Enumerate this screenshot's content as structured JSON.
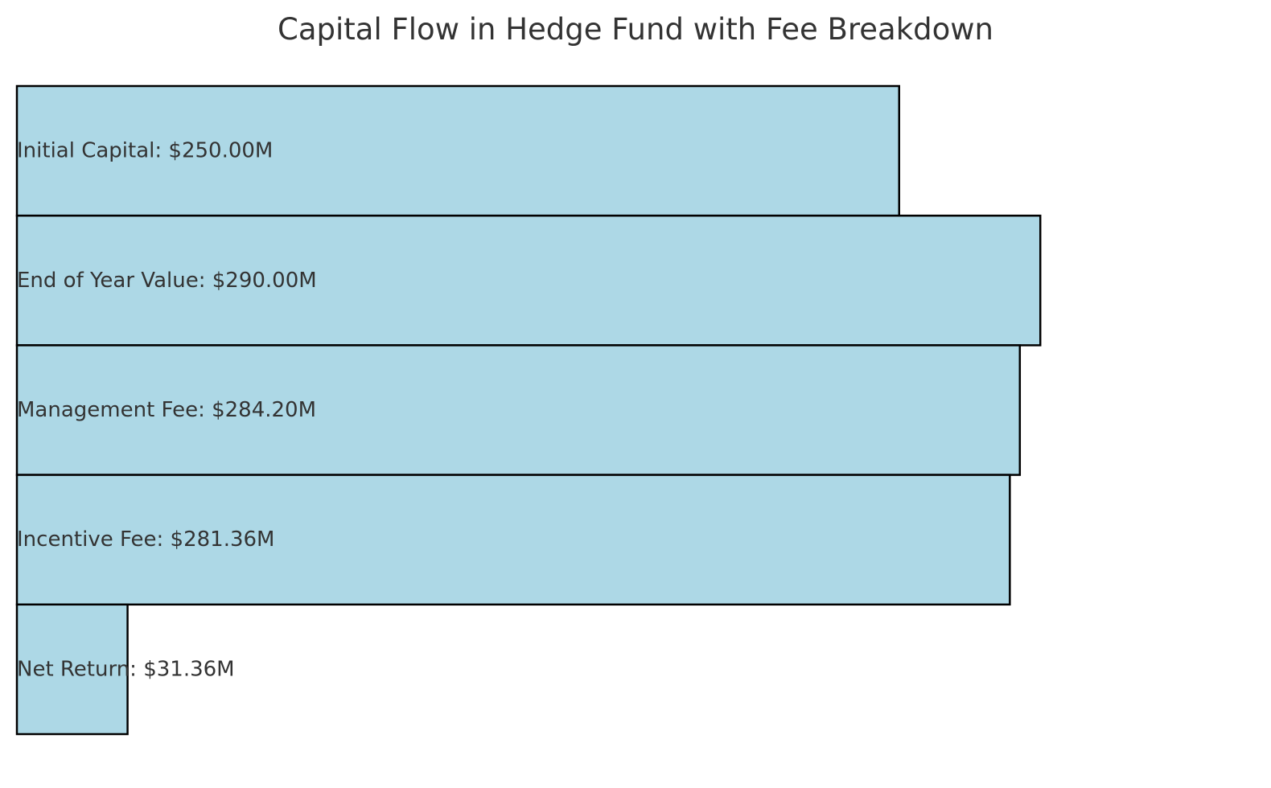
{
  "chart_data": {
    "type": "bar",
    "orientation": "horizontal",
    "title": "Capital Flow in Hedge Fund with Fee Breakdown",
    "categories": [
      "Initial Capital",
      "End of Year Value",
      "Management Fee",
      "Incentive Fee",
      "Net Return"
    ],
    "values": [
      250.0,
      290.0,
      284.2,
      281.36,
      31.36
    ],
    "labels": [
      "Initial Capital: $250.00M",
      "End of Year Value: $290.00M",
      "Management Fee: $284.20M",
      "Incentive Fee: $281.36M",
      "Net Return: $31.36M"
    ],
    "unit": "$M",
    "xlabel": "",
    "ylabel": "",
    "axes_visible": false,
    "grid": false,
    "legend": "none",
    "bar_color": "#add8e6",
    "edge_color": "#000000"
  }
}
